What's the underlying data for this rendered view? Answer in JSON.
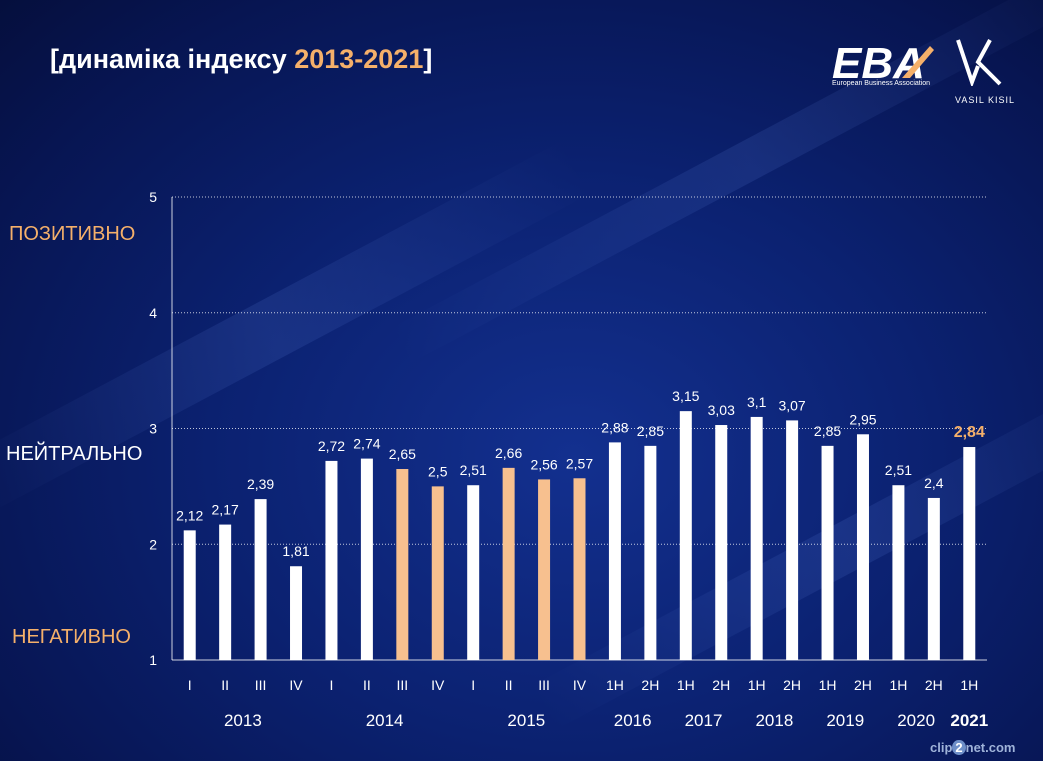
{
  "header": {
    "title_prefix": "[динаміка індексу ",
    "title_years": "2013-2021",
    "title_suffix": "]"
  },
  "logos": {
    "eba_text": "EBA",
    "eba_subtitle": "European Business Association",
    "vk_name": "VASIL KISIL"
  },
  "zones": {
    "positive": "ПОЗИТИВНО",
    "neutral": "НЕЙТРАЛЬНО",
    "negative": "НЕГАТИВНО"
  },
  "colors": {
    "bar_default": "#ffffff",
    "bar_highlight": "#f7c08f",
    "accent": "#f5b06a",
    "latest_label": "#f5b06a"
  },
  "chart_data": {
    "type": "bar",
    "title": "",
    "xlabel": "",
    "ylabel": "",
    "ylim": [
      1,
      5
    ],
    "yticks": [
      "1",
      "2",
      "3",
      "4",
      "5"
    ],
    "grid": true,
    "categories": [
      "I",
      "II",
      "III",
      "IV",
      "I",
      "II",
      "III",
      "IV",
      "I",
      "II",
      "III",
      "IV",
      "1H",
      "2H",
      "1H",
      "2H",
      "1H",
      "2H",
      "1H",
      "2H",
      "1H",
      "2H",
      "1H"
    ],
    "values": [
      2.12,
      2.17,
      2.39,
      1.81,
      2.72,
      2.74,
      2.65,
      2.5,
      2.51,
      2.66,
      2.56,
      2.57,
      2.88,
      2.85,
      3.15,
      3.03,
      3.1,
      3.07,
      2.85,
      2.95,
      2.51,
      2.4,
      2.84
    ],
    "value_labels": [
      "2,12",
      "2,17",
      "2,39",
      "1,81",
      "2,72",
      "2,74",
      "2,65",
      "2,5",
      "2,51",
      "2,66",
      "2,56",
      "2,57",
      "2,88",
      "2,85",
      "3,15",
      "3,03",
      "3,1",
      "3,07",
      "2,85",
      "2,95",
      "2,51",
      "2,4",
      "2,84"
    ],
    "highlighted": [
      6,
      7,
      9,
      10,
      11
    ],
    "year_groups": [
      {
        "label": "2013",
        "start": 0,
        "end": 3
      },
      {
        "label": "2014",
        "start": 4,
        "end": 7
      },
      {
        "label": "2015",
        "start": 8,
        "end": 11
      },
      {
        "label": "2016",
        "start": 12,
        "end": 13
      },
      {
        "label": "2017",
        "start": 14,
        "end": 15
      },
      {
        "label": "2018",
        "start": 16,
        "end": 17
      },
      {
        "label": "2019",
        "start": 18,
        "end": 19
      },
      {
        "label": "2020",
        "start": 20,
        "end": 21
      },
      {
        "label": "2021",
        "start": 22,
        "end": 22,
        "bold": true
      }
    ]
  },
  "watermark": {
    "pre": "clip",
    "mid": "2",
    "post": "net.com"
  }
}
